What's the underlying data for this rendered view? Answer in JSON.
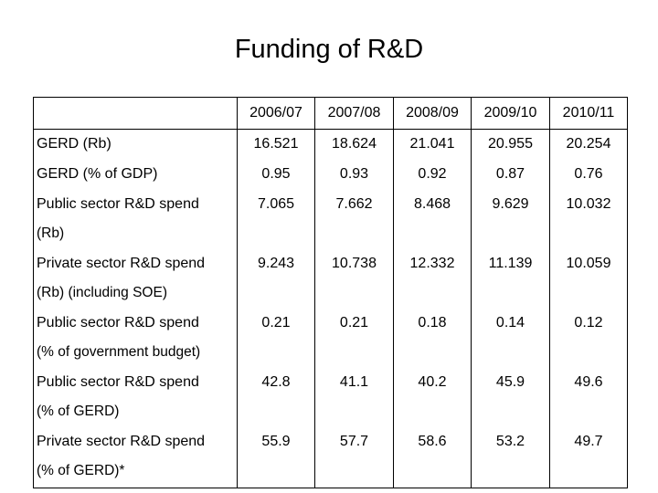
{
  "title": "Funding of R&D",
  "columns": [
    "2006/07",
    "2007/08",
    "2008/09",
    "2009/10",
    "2010/11"
  ],
  "rows": [
    {
      "label_line1": "GERD (Rb)",
      "label_line2": "",
      "values": [
        "16.521",
        "18.624",
        "21.041",
        "20.955",
        "20.254"
      ]
    },
    {
      "label_line1": "GERD (% of GDP)",
      "label_line2": "",
      "values": [
        "0.95",
        "0.93",
        "0.92",
        "0.87",
        "0.76"
      ]
    },
    {
      "label_line1": "Public sector R&D spend",
      "label_line2": "(Rb)",
      "values": [
        "7.065",
        "7.662",
        "8.468",
        "9.629",
        "10.032"
      ]
    },
    {
      "label_line1": "Private sector  R&D spend",
      "label_line2": "(Rb) (including SOE)",
      "values": [
        "9.243",
        "10.738",
        "12.332",
        "11.139",
        "10.059"
      ]
    },
    {
      "label_line1": "Public sector R&D spend",
      "label_line2": "(% of government budget)",
      "values": [
        "0.21",
        "0.21",
        "0.18",
        "0.14",
        "0.12"
      ]
    },
    {
      "label_line1": "Public sector R&D spend",
      "label_line2": "(% of GERD)",
      "values": [
        "42.8",
        "41.1",
        "40.2",
        "45.9",
        "49.6"
      ]
    },
    {
      "label_line1": "Private sector  R&D spend",
      "label_line2": "(% of GERD)*",
      "values": [
        "55.9",
        "57.7",
        "58.6",
        "53.2",
        "49.7"
      ]
    }
  ]
}
